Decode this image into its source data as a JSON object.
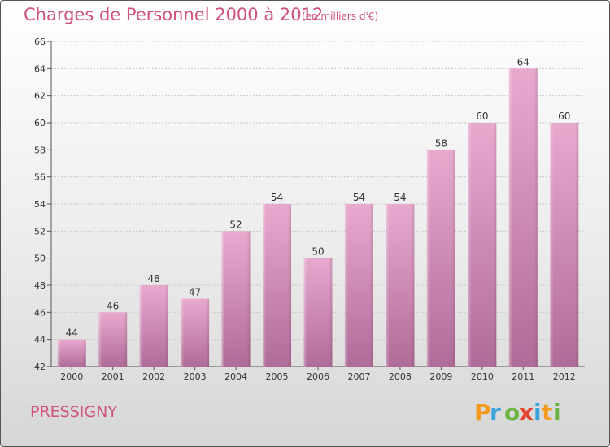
{
  "header": {
    "title": "Charges de Personnel 2000 à 2012",
    "subtitle": "(en milliers d'€)"
  },
  "footer": {
    "place": "PRESSIGNY",
    "logo_text": "Proxiti"
  },
  "colors": {
    "title": "#d0507f",
    "bar_top": "#e8a9cf",
    "bar_bottom": "#b06c98"
  },
  "chart_data": {
    "type": "bar",
    "categories": [
      "2000",
      "2001",
      "2002",
      "2003",
      "2004",
      "2005",
      "2006",
      "2007",
      "2008",
      "2009",
      "2010",
      "2011",
      "2012"
    ],
    "values": [
      44,
      46,
      48,
      47,
      52,
      54,
      50,
      54,
      54,
      58,
      60,
      64,
      60
    ],
    "ylim": [
      42,
      66
    ],
    "yticks": [
      42,
      44,
      46,
      48,
      50,
      52,
      54,
      56,
      58,
      60,
      62,
      64,
      66
    ],
    "grid": true
  }
}
